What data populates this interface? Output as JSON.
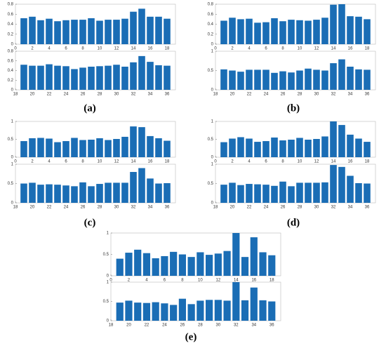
{
  "chart_data": [
    {
      "type": "bar",
      "x": [
        1,
        2,
        3,
        4,
        5,
        6,
        7,
        8,
        9,
        10,
        11,
        12,
        13,
        14,
        15,
        16,
        17,
        18
      ],
      "values": [
        0.52,
        0.55,
        0.48,
        0.51,
        0.46,
        0.48,
        0.49,
        0.49,
        0.52,
        0.47,
        0.49,
        0.49,
        0.51,
        0.65,
        0.71,
        0.55,
        0.55,
        0.51
      ],
      "xlim": [
        0,
        19
      ],
      "xticks": [
        0,
        2,
        4,
        6,
        8,
        10,
        12,
        14,
        16,
        18
      ],
      "ylim": [
        0,
        0.8
      ],
      "yticks": [
        0,
        0.2,
        0.4,
        0.6,
        0.8
      ],
      "color": "#1a6db5"
    },
    {
      "type": "bar",
      "x": [
        19,
        20,
        21,
        22,
        23,
        24,
        25,
        26,
        27,
        28,
        29,
        30,
        31,
        32,
        33,
        34,
        35,
        36
      ],
      "values": [
        0.52,
        0.5,
        0.5,
        0.53,
        0.5,
        0.49,
        0.43,
        0.46,
        0.48,
        0.49,
        0.5,
        0.52,
        0.48,
        0.57,
        0.7,
        0.58,
        0.51,
        0.5
      ],
      "xlim": [
        18,
        37
      ],
      "xticks": [
        18,
        20,
        22,
        24,
        26,
        28,
        30,
        32,
        34,
        36
      ],
      "ylim": [
        0,
        0.8
      ],
      "yticks": [
        0,
        0.2,
        0.4,
        0.6,
        0.8
      ],
      "color": "#1a6db5"
    },
    {
      "type": "bar",
      "x": [
        1,
        2,
        3,
        4,
        5,
        6,
        7,
        8,
        9,
        10,
        11,
        12,
        13,
        14,
        15,
        16,
        17,
        18
      ],
      "values": [
        0.47,
        0.53,
        0.5,
        0.51,
        0.43,
        0.44,
        0.52,
        0.46,
        0.49,
        0.48,
        0.47,
        0.49,
        0.53,
        0.79,
        0.8,
        0.56,
        0.55,
        0.5
      ],
      "xlim": [
        0,
        19
      ],
      "xticks": [
        0,
        2,
        4,
        6,
        8,
        10,
        12,
        14,
        16,
        18
      ],
      "ylim": [
        0,
        0.8
      ],
      "yticks": [
        0,
        0.2,
        0.4,
        0.6,
        0.8
      ],
      "color": "#1a6db5"
    },
    {
      "type": "bar",
      "x": [
        19,
        20,
        21,
        22,
        23,
        24,
        25,
        26,
        27,
        28,
        29,
        30,
        31,
        32,
        33,
        34,
        35,
        36
      ],
      "values": [
        0.53,
        0.5,
        0.47,
        0.52,
        0.52,
        0.52,
        0.44,
        0.48,
        0.45,
        0.5,
        0.55,
        0.52,
        0.5,
        0.69,
        0.79,
        0.6,
        0.53,
        0.52
      ],
      "xlim": [
        18,
        37
      ],
      "xticks": [
        18,
        20,
        22,
        24,
        26,
        28,
        30,
        32,
        34,
        36
      ],
      "ylim": [
        0,
        1
      ],
      "yticks": [
        0,
        0.5,
        1
      ],
      "color": "#1a6db5"
    },
    {
      "type": "bar",
      "x": [
        1,
        2,
        3,
        4,
        5,
        6,
        7,
        8,
        9,
        10,
        11,
        12,
        13,
        14,
        15,
        16,
        17,
        18
      ],
      "values": [
        0.45,
        0.53,
        0.54,
        0.52,
        0.42,
        0.45,
        0.54,
        0.48,
        0.49,
        0.53,
        0.48,
        0.51,
        0.57,
        0.86,
        0.84,
        0.59,
        0.53,
        0.46
      ],
      "xlim": [
        0,
        19
      ],
      "xticks": [
        0,
        2,
        4,
        6,
        8,
        10,
        12,
        14,
        16,
        18
      ],
      "ylim": [
        0,
        1
      ],
      "yticks": [
        0,
        0.5,
        1
      ],
      "color": "#1a6db5"
    },
    {
      "type": "bar",
      "x": [
        19,
        20,
        21,
        22,
        23,
        24,
        25,
        26,
        27,
        28,
        29,
        30,
        31,
        32,
        33,
        34,
        35,
        36
      ],
      "values": [
        0.5,
        0.52,
        0.47,
        0.48,
        0.47,
        0.45,
        0.43,
        0.53,
        0.43,
        0.49,
        0.52,
        0.52,
        0.52,
        0.8,
        0.9,
        0.63,
        0.5,
        0.51
      ],
      "xlim": [
        18,
        37
      ],
      "xticks": [
        18,
        20,
        22,
        24,
        26,
        28,
        30,
        32,
        34,
        36
      ],
      "ylim": [
        0,
        1
      ],
      "yticks": [
        0,
        0.5,
        1
      ],
      "color": "#1a6db5"
    },
    {
      "type": "bar",
      "x": [
        1,
        2,
        3,
        4,
        5,
        6,
        7,
        8,
        9,
        10,
        11,
        12,
        13,
        14,
        15,
        16,
        17,
        18
      ],
      "values": [
        0.42,
        0.52,
        0.56,
        0.52,
        0.43,
        0.45,
        0.55,
        0.47,
        0.49,
        0.54,
        0.49,
        0.51,
        0.58,
        1.0,
        0.9,
        0.63,
        0.52,
        0.43
      ],
      "xlim": [
        0,
        19
      ],
      "xticks": [
        0,
        2,
        4,
        6,
        8,
        10,
        12,
        14,
        16,
        18
      ],
      "ylim": [
        0,
        1
      ],
      "yticks": [
        0,
        0.5,
        1
      ],
      "color": "#1a6db5"
    },
    {
      "type": "bar",
      "x": [
        19,
        20,
        21,
        22,
        23,
        24,
        25,
        26,
        27,
        28,
        29,
        30,
        31,
        32,
        33,
        34,
        35,
        36
      ],
      "values": [
        0.47,
        0.52,
        0.46,
        0.49,
        0.48,
        0.47,
        0.44,
        0.55,
        0.43,
        0.52,
        0.52,
        0.52,
        0.53,
        0.98,
        0.93,
        0.7,
        0.51,
        0.5
      ],
      "xlim": [
        18,
        37
      ],
      "xticks": [
        18,
        20,
        22,
        24,
        26,
        28,
        30,
        32,
        34,
        36
      ],
      "ylim": [
        0,
        1
      ],
      "yticks": [
        0,
        0.5,
        1
      ],
      "color": "#1a6db5"
    },
    {
      "type": "bar",
      "x": [
        1,
        2,
        3,
        4,
        5,
        6,
        7,
        8,
        9,
        10,
        11,
        12,
        13,
        14,
        15,
        16,
        17,
        18
      ],
      "values": [
        0.4,
        0.54,
        0.61,
        0.53,
        0.41,
        0.46,
        0.56,
        0.5,
        0.44,
        0.55,
        0.49,
        0.52,
        0.58,
        1.0,
        0.44,
        0.9,
        0.55,
        0.48
      ],
      "xlim": [
        0,
        19
      ],
      "xticks": [
        0,
        2,
        4,
        6,
        8,
        10,
        12,
        14,
        16,
        18
      ],
      "ylim": [
        0,
        1
      ],
      "yticks": [
        0,
        0.5,
        1
      ],
      "color": "#1a6db5"
    },
    {
      "type": "bar",
      "x": [
        19,
        20,
        21,
        22,
        23,
        24,
        25,
        26,
        27,
        28,
        29,
        30,
        31,
        32,
        33,
        34,
        35,
        36
      ],
      "values": [
        0.47,
        0.52,
        0.47,
        0.46,
        0.48,
        0.45,
        0.41,
        0.57,
        0.43,
        0.52,
        0.54,
        0.54,
        0.52,
        1.0,
        0.53,
        0.86,
        0.53,
        0.5
      ],
      "xlim": [
        18,
        37
      ],
      "xticks": [
        18,
        20,
        22,
        24,
        26,
        28,
        30,
        32,
        34,
        36
      ],
      "ylim": [
        0,
        1
      ],
      "yticks": [
        0,
        0.5,
        1
      ],
      "color": "#1a6db5"
    }
  ],
  "panel_labels": [
    "(a)",
    "(b)",
    "(c)",
    "(d)",
    "(e)"
  ]
}
